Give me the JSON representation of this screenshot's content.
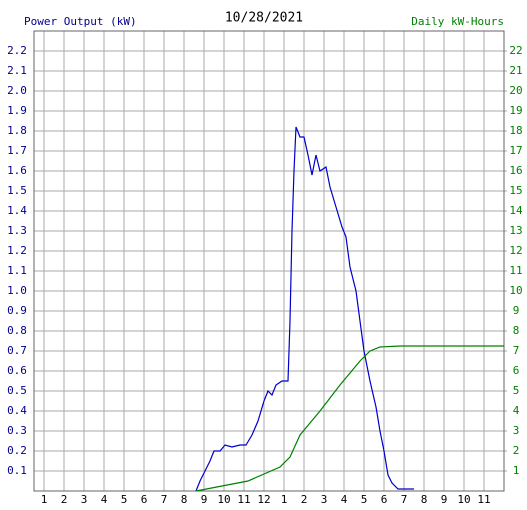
{
  "chart_data": {
    "type": "line",
    "title": "10/28/2021",
    "y_label": "Power Output (kW)",
    "y2_label": "Daily kW-Hours",
    "xlim": [
      0.5,
      24
    ],
    "xticks": [
      1,
      2,
      3,
      4,
      5,
      6,
      7,
      8,
      9,
      10,
      11,
      12,
      {
        "value": 13,
        "label": "1"
      },
      {
        "value": 14,
        "label": "2"
      },
      {
        "value": 15,
        "label": "3"
      },
      {
        "value": 16,
        "label": "4"
      },
      {
        "value": 17,
        "label": "5"
      },
      {
        "value": 18,
        "label": "6"
      },
      {
        "value": 19,
        "label": "7"
      },
      {
        "value": 20,
        "label": "8"
      },
      {
        "value": 21,
        "label": "9"
      },
      {
        "value": 22,
        "label": "10"
      },
      {
        "value": 23,
        "label": "11"
      }
    ],
    "ylim": [
      0,
      2.3
    ],
    "yticks": [
      0.1,
      0.2,
      0.3,
      0.4,
      0.5,
      0.6,
      0.7,
      0.8,
      0.9,
      {
        "value": 1,
        "label": "1.0"
      },
      1.1,
      1.2,
      1.3,
      1.4,
      1.5,
      1.6,
      1.7,
      1.8,
      1.9,
      {
        "value": 2,
        "label": "2.0"
      },
      2.1,
      2.2
    ],
    "y2lim": [
      0,
      23
    ],
    "y2ticks": [
      1,
      2,
      3,
      4,
      5,
      6,
      7,
      8,
      9,
      10,
      11,
      12,
      13,
      14,
      15,
      16,
      17,
      18,
      19,
      20,
      21,
      22
    ],
    "grid": true,
    "y_color": "#00008b",
    "y2_color": "#008000",
    "series": [
      {
        "color": "#0000cc",
        "x": [
          8.6,
          8.8,
          9.05,
          9.3,
          9.5,
          9.8,
          10.05,
          10.4,
          10.8,
          11.1,
          11.4,
          11.7,
          12.0,
          12.2,
          12.4,
          12.6,
          12.9,
          13.2,
          13.3,
          13.4,
          13.5,
          13.6,
          13.8,
          14.0,
          14.2,
          14.4,
          14.6,
          14.8,
          15.1,
          15.3,
          15.6,
          15.9,
          16.1,
          16.3,
          16.6,
          16.8,
          17.0,
          17.3,
          17.6,
          17.8,
          18.0,
          18.2,
          18.4,
          18.7,
          19.0,
          19.5
        ],
        "values": [
          0,
          0.05,
          0.1,
          0.15,
          0.2,
          0.2,
          0.23,
          0.22,
          0.23,
          0.23,
          0.28,
          0.35,
          0.45,
          0.5,
          0.48,
          0.53,
          0.55,
          0.55,
          0.85,
          1.3,
          1.6,
          1.82,
          1.77,
          1.77,
          1.68,
          1.58,
          1.68,
          1.6,
          1.62,
          1.52,
          1.42,
          1.32,
          1.27,
          1.12,
          1.0,
          0.85,
          0.7,
          0.55,
          0.42,
          0.3,
          0.2,
          0.08,
          0.04,
          0.01,
          0.01,
          0.01
        ]
      },
      {
        "color": "#008000",
        "axis": "y2",
        "x": [
          8.6,
          11.2,
          12.8,
          13.3,
          13.8,
          14.8,
          15.8,
          16.8,
          17.3,
          17.8,
          18.8,
          24
        ],
        "values": [
          0,
          0.5,
          1.2,
          1.7,
          2.8,
          4.0,
          5.3,
          6.5,
          7.0,
          7.2,
          7.25,
          7.25
        ]
      }
    ]
  }
}
